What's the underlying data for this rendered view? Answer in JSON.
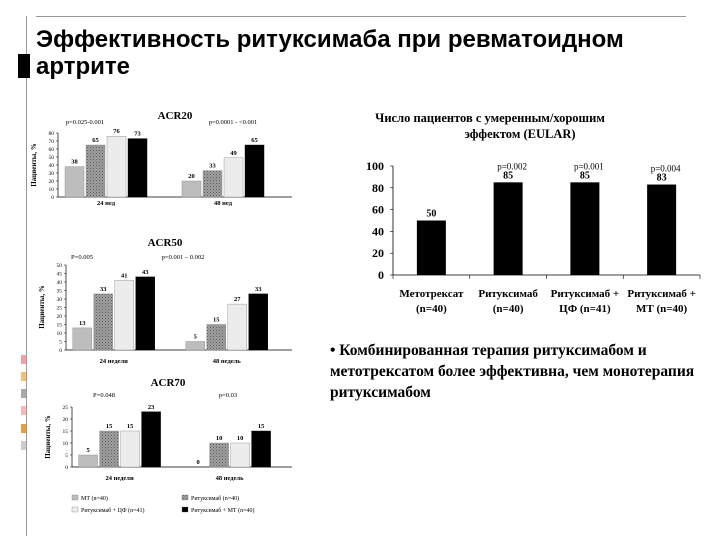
{
  "slide": {
    "title_line1": "Эффективность ритуксимаба при ревматоидном",
    "title_line2": "артрите",
    "bullet": "• Комбинированная терапия ритуксимабом и метотрексатом более эффективна, чем монотерапия ритуксимабом",
    "accent_colors": [
      "#f2a0a0",
      "#f2c070",
      "#aaaaaa",
      "#f5b8b8",
      "#e6a040",
      "#cccccc"
    ]
  },
  "left_panel": {
    "ylabel": "Пациенты, %",
    "colors": [
      "#bdbdbd",
      "#8c8c8c",
      "#ececec",
      "#000000"
    ],
    "legend": [
      "МТ (n=40)",
      "Ритуксимаб (n=40)",
      "Ритуксимаб + ЦФ (n=41)",
      "Ритуксимаб + МТ (n=40)"
    ]
  },
  "chart_data": [
    {
      "type": "bar",
      "title": "ACR20",
      "ylabel": "Пациенты, %",
      "ylim": [
        0,
        80
      ],
      "yticks": [
        0,
        10,
        20,
        30,
        40,
        50,
        60,
        70,
        80
      ],
      "categories": [
        "24 нед",
        "48 нед"
      ],
      "series": [
        {
          "name": "МТ (n=40)",
          "values": [
            38,
            20
          ]
        },
        {
          "name": "Ритуксимаб (n=40)",
          "values": [
            65,
            33
          ]
        },
        {
          "name": "Ритуксимаб + ЦФ (n=41)",
          "values": [
            76,
            49
          ]
        },
        {
          "name": "Ритуксимаб + МТ (n=40)",
          "values": [
            73,
            65
          ]
        }
      ],
      "p_labels": [
        "p=0.025-0.001",
        "p=0.0001 - <0.001"
      ]
    },
    {
      "type": "bar",
      "title": "ACR50",
      "ylabel": "Пациенты, %",
      "ylim": [
        0,
        50
      ],
      "yticks": [
        0,
        5,
        10,
        15,
        20,
        25,
        30,
        35,
        40,
        45,
        50
      ],
      "categories": [
        "24 недели",
        "48 недель"
      ],
      "series": [
        {
          "name": "МТ (n=40)",
          "values": [
            13,
            5
          ]
        },
        {
          "name": "Ритуксимаб (n=40)",
          "values": [
            33,
            15
          ]
        },
        {
          "name": "Ритуксимаб + ЦФ (n=41)",
          "values": [
            41,
            27
          ]
        },
        {
          "name": "Ритуксимаб + МТ (n=40)",
          "values": [
            43,
            33
          ]
        }
      ],
      "p_labels": [
        "P=0.005",
        "p=0.001 – 0.002"
      ]
    },
    {
      "type": "bar",
      "title": "ACR70",
      "ylabel": "Пациенты, %",
      "ylim": [
        0,
        25
      ],
      "yticks": [
        0,
        5,
        10,
        15,
        20,
        25
      ],
      "categories": [
        "24 недели",
        "48 недель"
      ],
      "series": [
        {
          "name": "МТ (n=40)",
          "values": [
            5,
            0
          ]
        },
        {
          "name": "Ритуксимаб (n=40)",
          "values": [
            15,
            10
          ]
        },
        {
          "name": "Ритуксимаб + ЦФ (n=41)",
          "values": [
            15,
            10
          ]
        },
        {
          "name": "Ритуксимаб + МТ (n=40)",
          "values": [
            23,
            15
          ]
        }
      ],
      "p_labels": [
        "P=0.048",
        "p=0.03"
      ]
    },
    {
      "type": "bar",
      "title": "Число пациентов с умеренным/хорошим эффектом (EULAR)",
      "title_line1": "Число пациентов с умеренным/хорошим",
      "title_line2": "эффектом (EULAR)",
      "ylim": [
        0,
        100
      ],
      "yticks": [
        0,
        20,
        40,
        60,
        80,
        100
      ],
      "categories": [
        "Метотрексат (n=40)",
        "Ритуксимаб (n=40)",
        "Ритуксимаб + ЦФ (n=41)",
        "Ритуксимаб + МТ (n=40)"
      ],
      "category_lines": [
        [
          "Метотрексат",
          "(n=40)"
        ],
        [
          "Ритуксимаб",
          "(n=40)"
        ],
        [
          "Ритуксимаб +",
          "ЦФ (n=41)"
        ],
        [
          "Ритуксимаб +",
          "МТ (n=40)"
        ]
      ],
      "values": [
        50,
        85,
        85,
        83
      ],
      "p_labels": [
        "",
        "p=0.002",
        "p=0.001",
        "p=0.004"
      ]
    }
  ]
}
